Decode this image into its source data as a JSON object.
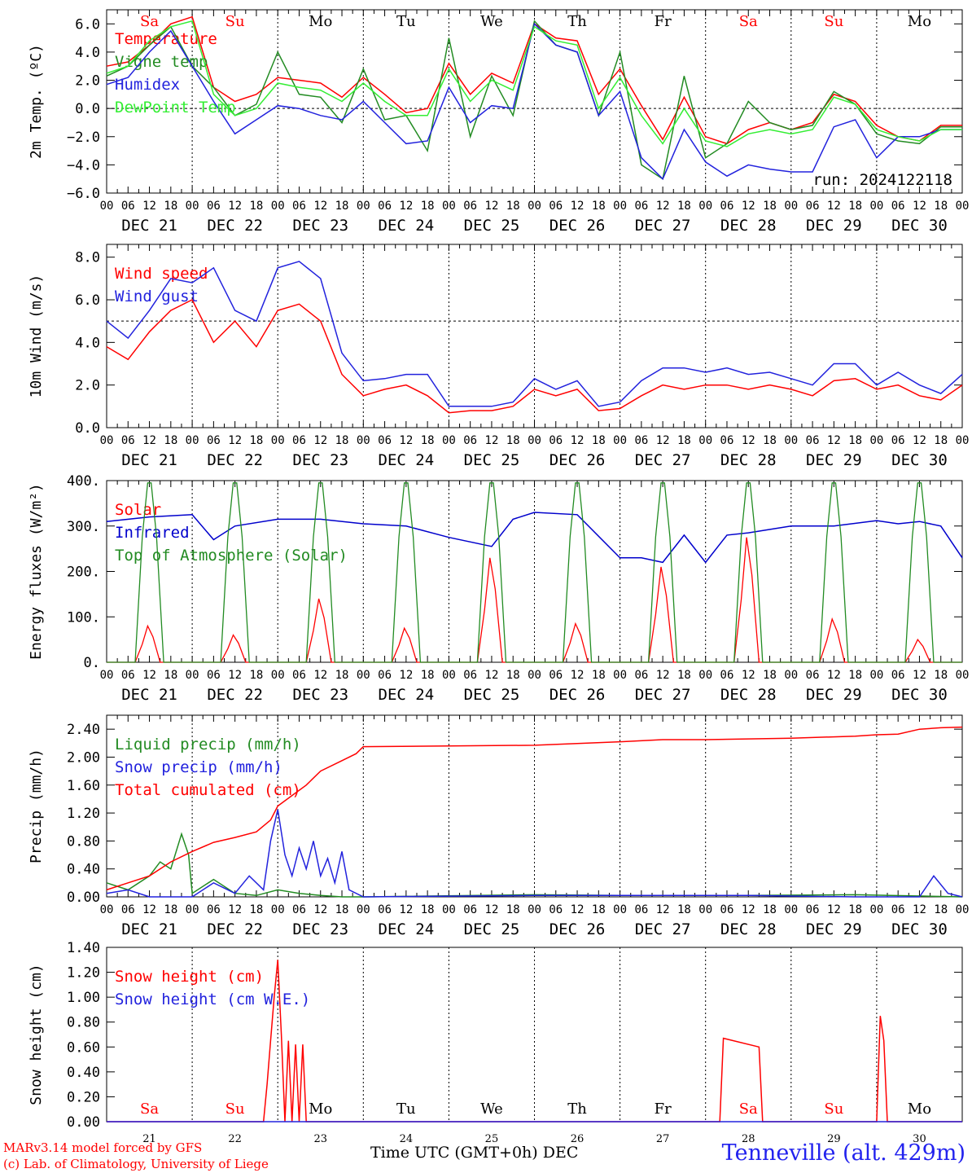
{
  "chart_data": [
    {
      "type": "line",
      "ylabel": "2m Temp. (ºC)",
      "ylim": [
        -6,
        7
      ],
      "yticks": [
        "6.0",
        "4.0",
        "2.0",
        "0.0",
        "−2.0",
        "−4.0",
        "−6.0"
      ],
      "ytick_values": [
        6,
        4,
        2,
        0,
        -2,
        -4,
        -6
      ],
      "ref_line": 0,
      "annotation": "run: 2024122118",
      "day_labels": [
        "Sa",
        "Su",
        "Mo",
        "Tu",
        "We",
        "Th",
        "Fr",
        "Sa",
        "Su",
        "Mo"
      ],
      "date_labels": [
        "DEC 21",
        "DEC 22",
        "DEC 23",
        "DEC 24",
        "DEC 25",
        "DEC 26",
        "DEC 27",
        "DEC 28",
        "DEC 29",
        "DEC 30"
      ],
      "hour_labels": [
        "00",
        "06",
        "12",
        "18"
      ],
      "series": [
        {
          "name": "Temperature",
          "color": "#ff0000",
          "x": [
            0,
            6,
            12,
            18,
            24,
            30,
            36,
            42,
            48,
            54,
            60,
            66,
            72,
            78,
            84,
            90,
            96,
            102,
            108,
            114,
            120,
            126,
            132,
            138,
            144,
            150,
            156,
            162,
            168,
            174,
            180,
            186,
            192,
            198,
            204,
            210,
            216,
            222,
            228,
            234,
            240
          ],
          "y": [
            3.0,
            3.3,
            4.5,
            6.0,
            6.5,
            1.5,
            0.5,
            1.0,
            2.2,
            2.0,
            1.8,
            0.8,
            2.2,
            1.0,
            -0.3,
            0.0,
            3.2,
            1.0,
            2.5,
            1.8,
            6.0,
            5.0,
            4.8,
            1.0,
            2.8,
            0.2,
            -2.2,
            0.8,
            -2.0,
            -2.5,
            -1.5,
            -1.0,
            -1.5,
            -1.0,
            1.0,
            0.5,
            -1.2,
            -2.0,
            -2.3,
            -1.2,
            -1.2
          ]
        },
        {
          "name": "Vigne temp",
          "color": "#228b22",
          "x": [
            0,
            6,
            12,
            18,
            24,
            30,
            36,
            42,
            48,
            54,
            60,
            66,
            72,
            78,
            84,
            90,
            96,
            102,
            108,
            114,
            120,
            126,
            132,
            138,
            144,
            150,
            156,
            162,
            168,
            174,
            180,
            186,
            192,
            198,
            204,
            210,
            216,
            222,
            228,
            234,
            240
          ],
          "y": [
            2.3,
            3.0,
            4.5,
            5.8,
            3.0,
            1.5,
            -0.5,
            0.3,
            4.0,
            1.0,
            0.8,
            -1.0,
            2.8,
            -0.8,
            -0.5,
            -3.0,
            5.0,
            -2.0,
            2.3,
            -0.5,
            6.2,
            4.5,
            4.0,
            -0.5,
            4.0,
            -4.0,
            -5.0,
            2.3,
            -3.5,
            -2.5,
            0.5,
            -1.0,
            -1.5,
            -1.2,
            1.2,
            0.3,
            -1.8,
            -2.3,
            -2.5,
            -1.3,
            -1.3
          ]
        },
        {
          "name": "Humidex",
          "color": "#2222dd",
          "x": [
            0,
            6,
            12,
            18,
            24,
            30,
            36,
            42,
            48,
            54,
            60,
            66,
            72,
            78,
            84,
            90,
            96,
            102,
            108,
            114,
            120,
            126,
            132,
            138,
            144,
            150,
            156,
            162,
            168,
            174,
            180,
            186,
            192,
            198,
            204,
            210,
            216,
            222,
            228,
            234,
            240
          ],
          "y": [
            1.7,
            2.2,
            4.0,
            5.5,
            3.0,
            0.5,
            -1.8,
            -0.8,
            0.2,
            0.0,
            -0.5,
            -0.8,
            0.5,
            -1.0,
            -2.5,
            -2.3,
            1.5,
            -1.0,
            0.2,
            0.0,
            6.0,
            4.5,
            4.0,
            -0.5,
            1.2,
            -3.5,
            -5.0,
            -1.5,
            -3.8,
            -4.8,
            -4.0,
            -4.3,
            -4.5,
            -4.5,
            -1.3,
            -0.8,
            -3.5,
            -2.0,
            -2.0,
            -1.5,
            -1.5
          ]
        },
        {
          "name": "DewPoint Temp",
          "color": "#33ee33",
          "x": [
            0,
            6,
            12,
            18,
            24,
            30,
            36,
            42,
            48,
            54,
            60,
            66,
            72,
            78,
            84,
            90,
            96,
            102,
            108,
            114,
            120,
            126,
            132,
            138,
            144,
            150,
            156,
            162,
            168,
            174,
            180,
            186,
            192,
            198,
            204,
            210,
            216,
            222,
            228,
            234,
            240
          ],
          "y": [
            2.5,
            3.0,
            4.8,
            5.8,
            6.2,
            1.0,
            -0.5,
            0.0,
            1.8,
            1.5,
            1.3,
            0.5,
            1.8,
            0.5,
            -0.5,
            -0.5,
            2.8,
            0.5,
            2.0,
            1.3,
            5.8,
            4.8,
            4.5,
            0.0,
            2.2,
            -0.5,
            -2.5,
            0.0,
            -2.3,
            -2.7,
            -1.8,
            -1.5,
            -1.8,
            -1.5,
            0.8,
            0.3,
            -1.5,
            -2.0,
            -2.3,
            -1.5,
            -1.5
          ]
        }
      ]
    },
    {
      "type": "line",
      "ylabel": "10m Wind (m/s)",
      "ylim": [
        0,
        8.6
      ],
      "yticks": [
        "8.0",
        "6.0",
        "4.0",
        "2.0",
        "0.0"
      ],
      "ytick_values": [
        8,
        6,
        4,
        2,
        0
      ],
      "ref_line": 5,
      "date_labels": [
        "DEC 21",
        "DEC 22",
        "DEC 23",
        "DEC 24",
        "DEC 25",
        "DEC 26",
        "DEC 27",
        "DEC 28",
        "DEC 29",
        "DEC 30"
      ],
      "hour_labels": [
        "00",
        "06",
        "12",
        "18"
      ],
      "series": [
        {
          "name": "Wind speed",
          "color": "#ff0000",
          "x": [
            0,
            6,
            12,
            18,
            24,
            30,
            36,
            42,
            48,
            54,
            60,
            66,
            72,
            78,
            84,
            90,
            96,
            102,
            108,
            114,
            120,
            126,
            132,
            138,
            144,
            150,
            156,
            162,
            168,
            174,
            180,
            186,
            192,
            198,
            204,
            210,
            216,
            222,
            228,
            234,
            240
          ],
          "y": [
            3.8,
            3.2,
            4.5,
            5.5,
            6.0,
            4.0,
            5.0,
            3.8,
            5.5,
            5.8,
            5.0,
            2.5,
            1.5,
            1.8,
            2.0,
            1.5,
            0.7,
            0.8,
            0.8,
            1.0,
            1.8,
            1.5,
            1.8,
            0.8,
            0.9,
            1.5,
            2.0,
            1.8,
            2.0,
            2.0,
            1.8,
            2.0,
            1.8,
            1.5,
            2.2,
            2.3,
            1.8,
            2.0,
            1.5,
            1.3,
            2.0
          ]
        },
        {
          "name": "Wind gust",
          "color": "#2222dd",
          "x": [
            0,
            6,
            12,
            18,
            24,
            30,
            36,
            42,
            48,
            54,
            60,
            66,
            72,
            78,
            84,
            90,
            96,
            102,
            108,
            114,
            120,
            126,
            132,
            138,
            144,
            150,
            156,
            162,
            168,
            174,
            180,
            186,
            192,
            198,
            204,
            210,
            216,
            222,
            228,
            234,
            240
          ],
          "y": [
            5.0,
            4.2,
            5.5,
            7.0,
            6.8,
            7.5,
            5.5,
            5.0,
            7.5,
            7.8,
            7.0,
            3.5,
            2.2,
            2.3,
            2.5,
            2.5,
            1.0,
            1.0,
            1.0,
            1.2,
            2.3,
            1.8,
            2.2,
            1.0,
            1.2,
            2.2,
            2.8,
            2.8,
            2.6,
            2.8,
            2.5,
            2.6,
            2.3,
            2.0,
            3.0,
            3.0,
            2.0,
            2.6,
            2.0,
            1.6,
            2.5
          ]
        }
      ]
    },
    {
      "type": "line",
      "ylabel": "Energy fluxes (W/m²)",
      "ylim": [
        0,
        400
      ],
      "yticks": [
        "400.",
        "300.",
        "200.",
        "100.",
        "0."
      ],
      "ytick_values": [
        400,
        300,
        200,
        100,
        0
      ],
      "date_labels": [
        "DEC 21",
        "DEC 22",
        "DEC 23",
        "DEC 24",
        "DEC 25",
        "DEC 26",
        "DEC 27",
        "DEC 28",
        "DEC 29",
        "DEC 30"
      ],
      "hour_labels": [
        "00",
        "06",
        "12",
        "18"
      ],
      "series": [
        {
          "name": "Solar",
          "color": "#ff0000",
          "peaks": [
            80,
            60,
            140,
            75,
            230,
            85,
            210,
            275,
            95,
            50
          ],
          "shape": "solar"
        },
        {
          "name": "Infrared",
          "color": "#0000cc",
          "x": [
            0,
            12,
            24,
            30,
            36,
            48,
            60,
            72,
            84,
            96,
            108,
            114,
            120,
            132,
            144,
            150,
            156,
            162,
            168,
            174,
            180,
            192,
            204,
            216,
            222,
            228,
            234,
            240
          ],
          "y": [
            310,
            320,
            325,
            270,
            300,
            315,
            315,
            305,
            300,
            275,
            255,
            315,
            330,
            325,
            230,
            230,
            220,
            280,
            220,
            280,
            285,
            300,
            300,
            312,
            305,
            310,
            300,
            230
          ]
        },
        {
          "name": "Top of Atmosphere (Solar)",
          "color": "#228b22",
          "peaks": [
            395,
            395,
            395,
            395,
            395,
            395,
            395,
            395,
            395,
            395
          ],
          "shape": "toa"
        }
      ]
    },
    {
      "type": "line",
      "ylabel": "Precip (mm/h)",
      "ylim": [
        0,
        2.6
      ],
      "yticks": [
        "2.40",
        "2.00",
        "1.60",
        "1.20",
        "0.80",
        "0.40",
        "0.00"
      ],
      "ytick_values": [
        2.4,
        2.0,
        1.6,
        1.2,
        0.8,
        0.4,
        0.0
      ],
      "date_labels": [
        "DEC 21",
        "DEC 22",
        "DEC 23",
        "DEC 24",
        "DEC 25",
        "DEC 26",
        "DEC 27",
        "DEC 28",
        "DEC 29",
        "DEC 30"
      ],
      "hour_labels": [
        "00",
        "06",
        "12",
        "18"
      ],
      "series": [
        {
          "name": "Liquid precip (mm/h)",
          "color": "#228b22",
          "x": [
            0,
            6,
            12,
            15,
            18,
            21,
            23,
            24,
            30,
            36,
            42,
            48,
            54,
            60,
            66,
            72,
            120,
            144,
            180,
            210,
            240
          ],
          "y": [
            0.2,
            0.1,
            0.3,
            0.5,
            0.4,
            0.9,
            0.6,
            0.05,
            0.25,
            0.05,
            0.02,
            0.1,
            0.05,
            0.02,
            0.0,
            0.0,
            0.03,
            0.02,
            0.02,
            0.03,
            0.0
          ]
        },
        {
          "name": "Snow precip (mm/h)",
          "color": "#2222dd",
          "x": [
            0,
            6,
            12,
            24,
            30,
            36,
            40,
            44,
            46,
            48,
            50,
            52,
            54,
            56,
            58,
            60,
            62,
            64,
            66,
            68,
            72,
            120,
            180,
            210,
            228,
            232,
            236,
            240
          ],
          "y": [
            0.05,
            0.1,
            0.0,
            0.0,
            0.2,
            0.05,
            0.3,
            0.1,
            0.8,
            1.25,
            0.6,
            0.3,
            0.7,
            0.4,
            0.8,
            0.3,
            0.55,
            0.2,
            0.65,
            0.1,
            0.0,
            0.02,
            0.02,
            0.0,
            0.0,
            0.3,
            0.05,
            0.0
          ]
        },
        {
          "name": "Total cumulated (cm)",
          "color": "#ff0000",
          "x": [
            0,
            6,
            12,
            18,
            24,
            30,
            36,
            42,
            46,
            48,
            52,
            56,
            60,
            66,
            70,
            72,
            96,
            120,
            144,
            156,
            168,
            192,
            210,
            216,
            222,
            228,
            234,
            240
          ],
          "y": [
            0.1,
            0.2,
            0.3,
            0.5,
            0.65,
            0.78,
            0.85,
            0.93,
            1.1,
            1.3,
            1.45,
            1.6,
            1.8,
            1.95,
            2.05,
            2.15,
            2.16,
            2.17,
            2.22,
            2.25,
            2.25,
            2.27,
            2.3,
            2.32,
            2.33,
            2.4,
            2.42,
            2.43
          ]
        }
      ]
    },
    {
      "type": "line",
      "ylabel": "Snow height (cm)",
      "ylim": [
        0,
        1.4
      ],
      "yticks": [
        "1.40",
        "1.20",
        "1.00",
        "0.80",
        "0.60",
        "0.40",
        "0.20",
        "0.00"
      ],
      "ytick_values": [
        1.4,
        1.2,
        1.0,
        0.8,
        0.6,
        0.4,
        0.2,
        0.0
      ],
      "day_labels": [
        "Sa",
        "Su",
        "Mo",
        "Tu",
        "We",
        "Th",
        "Fr",
        "Sa",
        "Su",
        "Mo"
      ],
      "date_numbers": [
        "21",
        "22",
        "23",
        "24",
        "25",
        "26",
        "27",
        "28",
        "29",
        "30"
      ],
      "series": [
        {
          "name": "Snow height (cm)",
          "color": "#ff0000",
          "x": [
            0,
            44,
            45,
            46,
            47,
            48,
            49,
            50,
            51,
            52,
            53,
            54,
            55,
            56,
            57,
            58,
            59,
            60,
            61,
            172,
            173,
            183,
            184,
            216,
            217,
            218,
            219,
            220,
            240
          ],
          "y": [
            0,
            0,
            0.3,
            0.65,
            1.0,
            1.3,
            0.7,
            0,
            0.65,
            0,
            0.62,
            0,
            0.62,
            0,
            0,
            0,
            0,
            0,
            0,
            0,
            0.67,
            0.6,
            0,
            0,
            0.85,
            0.65,
            0,
            0,
            0
          ]
        },
        {
          "name": "Snow height (cm W.E.)",
          "color": "#2222dd",
          "x": [
            0,
            240
          ],
          "y": [
            0,
            0
          ]
        }
      ]
    }
  ],
  "footer": {
    "credit_line1": "MARv3.14 model forced by GFS",
    "credit_line2": "(c) Lab. of Climatology, University of Liege",
    "xlabel": "Time UTC (GMT+0h) DEC",
    "station": "Tenneville (alt. 429m)"
  },
  "colors": {
    "weekend": "#ff0000",
    "weekday": "#000000",
    "axis": "#000000",
    "station": "#2222ee"
  }
}
